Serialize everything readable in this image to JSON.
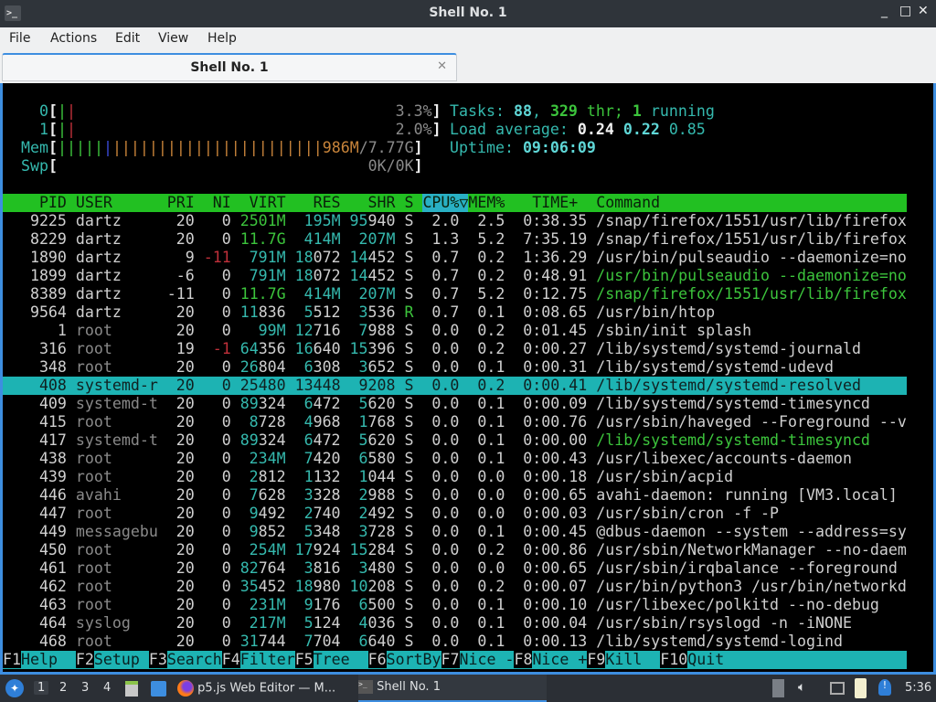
{
  "window": {
    "title": "Shell No. 1",
    "controls": [
      "_",
      "□",
      "✕"
    ]
  },
  "menu": [
    "File",
    "Actions",
    "Edit",
    "View",
    "Help"
  ],
  "tab": {
    "label": "Shell No. 1",
    "close": "✕"
  },
  "meters": {
    "cpu": [
      {
        "label": "0",
        "value": "3.3%",
        "percent": 3.3
      },
      {
        "label": "1",
        "value": "2.0%",
        "percent": 2.0
      }
    ],
    "mem": {
      "label": "Mem",
      "used": "986M",
      "total": "7.77G"
    },
    "swp": {
      "label": "Swp",
      "value": "0K/0K"
    }
  },
  "summary": {
    "tasks_label": "Tasks:",
    "tasks": "88",
    "sep": ",",
    "threads": "329",
    "thr_label": "thr;",
    "running": "1",
    "running_label": "running",
    "load_label": "Load average:",
    "load1": "0.24",
    "load5": "0.22",
    "load15": "0.85",
    "uptime_label": "Uptime:",
    "uptime": "09:06:09"
  },
  "header": {
    "pid": "PID",
    "user": "USER",
    "pri": "PRI",
    "ni": "NI",
    "virt": "VIRT",
    "res": "RES",
    "shr": "SHR",
    "s": "S",
    "cpu": "CPU%▽",
    "mem": "MEM%",
    "time": "TIME+",
    "cmd": "Command"
  },
  "colors": {
    "header_bg": "#22c022",
    "selection": "#1db3b3",
    "accent_teal": "#35b9ae"
  },
  "rows": [
    {
      "pid": "9225",
      "user": "dartz",
      "pri": "20",
      "ni": "0",
      "virt": "2501M",
      "res": "195M",
      "shr": "95940",
      "s": "S",
      "cpu": "2.0",
      "mem": "2.5",
      "time": "0:38.35",
      "cmd": "/snap/firefox/1551/usr/lib/firefox"
    },
    {
      "pid": "8229",
      "user": "dartz",
      "pri": "20",
      "ni": "0",
      "virt": "11.7G",
      "res": "414M",
      "shr": "207M",
      "s": "S",
      "cpu": "1.3",
      "mem": "5.2",
      "time": "7:35.19",
      "cmd": "/snap/firefox/1551/usr/lib/firefox"
    },
    {
      "pid": "1890",
      "user": "dartz",
      "pri": "9",
      "ni": "-11",
      "virt": "791M",
      "res": "18072",
      "shr": "14452",
      "s": "S",
      "cpu": "0.7",
      "mem": "0.2",
      "time": "1:36.29",
      "cmd": "/usr/bin/pulseaudio --daemonize=no"
    },
    {
      "pid": "1899",
      "user": "dartz",
      "pri": "-6",
      "ni": "0",
      "virt": "791M",
      "res": "18072",
      "shr": "14452",
      "s": "S",
      "cpu": "0.7",
      "mem": "0.2",
      "time": "0:48.91",
      "cmd": "/usr/bin/pulseaudio --daemonize=no",
      "thread": true
    },
    {
      "pid": "8389",
      "user": "dartz",
      "pri": "-11",
      "ni": "0",
      "virt": "11.7G",
      "res": "414M",
      "shr": "207M",
      "s": "S",
      "cpu": "0.7",
      "mem": "5.2",
      "time": "0:12.75",
      "cmd": "/snap/firefox/1551/usr/lib/firefox",
      "thread": true
    },
    {
      "pid": "9564",
      "user": "dartz",
      "pri": "20",
      "ni": "0",
      "virt": "11836",
      "res": "5512",
      "shr": "3536",
      "s": "R",
      "cpu": "0.7",
      "mem": "0.1",
      "time": "0:08.65",
      "cmd": "/usr/bin/htop"
    },
    {
      "pid": "1",
      "user": "root",
      "pri": "20",
      "ni": "0",
      "virt": "99M",
      "res": "12716",
      "shr": "7988",
      "s": "S",
      "cpu": "0.0",
      "mem": "0.2",
      "time": "0:01.45",
      "cmd": "/sbin/init splash"
    },
    {
      "pid": "316",
      "user": "root",
      "pri": "19",
      "ni": "-1",
      "virt": "64356",
      "res": "16640",
      "shr": "15396",
      "s": "S",
      "cpu": "0.0",
      "mem": "0.2",
      "time": "0:00.27",
      "cmd": "/lib/systemd/systemd-journald"
    },
    {
      "pid": "348",
      "user": "root",
      "pri": "20",
      "ni": "0",
      "virt": "26804",
      "res": "6308",
      "shr": "3652",
      "s": "S",
      "cpu": "0.0",
      "mem": "0.1",
      "time": "0:00.31",
      "cmd": "/lib/systemd/systemd-udevd"
    },
    {
      "pid": "408",
      "user": "systemd-r",
      "pri": "20",
      "ni": "0",
      "virt": "25480",
      "res": "13448",
      "shr": "9208",
      "s": "S",
      "cpu": "0.0",
      "mem": "0.2",
      "time": "0:00.41",
      "cmd": "/lib/systemd/systemd-resolved",
      "selected": true
    },
    {
      "pid": "409",
      "user": "systemd-t",
      "pri": "20",
      "ni": "0",
      "virt": "89324",
      "res": "6472",
      "shr": "5620",
      "s": "S",
      "cpu": "0.0",
      "mem": "0.1",
      "time": "0:00.09",
      "cmd": "/lib/systemd/systemd-timesyncd"
    },
    {
      "pid": "415",
      "user": "root",
      "pri": "20",
      "ni": "0",
      "virt": "8728",
      "res": "4968",
      "shr": "1768",
      "s": "S",
      "cpu": "0.0",
      "mem": "0.1",
      "time": "0:00.76",
      "cmd": "/usr/sbin/haveged --Foreground --v"
    },
    {
      "pid": "417",
      "user": "systemd-t",
      "pri": "20",
      "ni": "0",
      "virt": "89324",
      "res": "6472",
      "shr": "5620",
      "s": "S",
      "cpu": "0.0",
      "mem": "0.1",
      "time": "0:00.00",
      "cmd": "/lib/systemd/systemd-timesyncd",
      "thread": true
    },
    {
      "pid": "438",
      "user": "root",
      "pri": "20",
      "ni": "0",
      "virt": "234M",
      "res": "7420",
      "shr": "6580",
      "s": "S",
      "cpu": "0.0",
      "mem": "0.1",
      "time": "0:00.43",
      "cmd": "/usr/libexec/accounts-daemon"
    },
    {
      "pid": "439",
      "user": "root",
      "pri": "20",
      "ni": "0",
      "virt": "2812",
      "res": "1132",
      "shr": "1044",
      "s": "S",
      "cpu": "0.0",
      "mem": "0.0",
      "time": "0:00.18",
      "cmd": "/usr/sbin/acpid"
    },
    {
      "pid": "446",
      "user": "avahi",
      "pri": "20",
      "ni": "0",
      "virt": "7628",
      "res": "3328",
      "shr": "2988",
      "s": "S",
      "cpu": "0.0",
      "mem": "0.0",
      "time": "0:00.65",
      "cmd": "avahi-daemon: running [VM3.local]"
    },
    {
      "pid": "447",
      "user": "root",
      "pri": "20",
      "ni": "0",
      "virt": "9492",
      "res": "2740",
      "shr": "2492",
      "s": "S",
      "cpu": "0.0",
      "mem": "0.0",
      "time": "0:00.03",
      "cmd": "/usr/sbin/cron -f -P"
    },
    {
      "pid": "449",
      "user": "messagebu",
      "pri": "20",
      "ni": "0",
      "virt": "9852",
      "res": "5348",
      "shr": "3728",
      "s": "S",
      "cpu": "0.0",
      "mem": "0.1",
      "time": "0:00.45",
      "cmd": "@dbus-daemon --system --address=sy"
    },
    {
      "pid": "450",
      "user": "root",
      "pri": "20",
      "ni": "0",
      "virt": "254M",
      "res": "17924",
      "shr": "15284",
      "s": "S",
      "cpu": "0.0",
      "mem": "0.2",
      "time": "0:00.86",
      "cmd": "/usr/sbin/NetworkManager --no-daem"
    },
    {
      "pid": "461",
      "user": "root",
      "pri": "20",
      "ni": "0",
      "virt": "82764",
      "res": "3816",
      "shr": "3480",
      "s": "S",
      "cpu": "0.0",
      "mem": "0.0",
      "time": "0:00.65",
      "cmd": "/usr/sbin/irqbalance --foreground"
    },
    {
      "pid": "462",
      "user": "root",
      "pri": "20",
      "ni": "0",
      "virt": "35452",
      "res": "18980",
      "shr": "10208",
      "s": "S",
      "cpu": "0.0",
      "mem": "0.2",
      "time": "0:00.07",
      "cmd": "/usr/bin/python3 /usr/bin/networkd"
    },
    {
      "pid": "463",
      "user": "root",
      "pri": "20",
      "ni": "0",
      "virt": "231M",
      "res": "9176",
      "shr": "6500",
      "s": "S",
      "cpu": "0.0",
      "mem": "0.1",
      "time": "0:00.10",
      "cmd": "/usr/libexec/polkitd --no-debug"
    },
    {
      "pid": "464",
      "user": "syslog",
      "pri": "20",
      "ni": "0",
      "virt": "217M",
      "res": "5124",
      "shr": "4036",
      "s": "S",
      "cpu": "0.0",
      "mem": "0.1",
      "time": "0:00.04",
      "cmd": "/usr/sbin/rsyslogd -n -iNONE"
    },
    {
      "pid": "468",
      "user": "root",
      "pri": "20",
      "ni": "0",
      "virt": "31744",
      "res": "7704",
      "shr": "6640",
      "s": "S",
      "cpu": "0.0",
      "mem": "0.1",
      "time": "0:00.13",
      "cmd": "/lib/systemd/systemd-logind"
    }
  ],
  "footer": [
    {
      "key": "F1",
      "label": "Help"
    },
    {
      "key": "F2",
      "label": "Setup"
    },
    {
      "key": "F3",
      "label": "Search"
    },
    {
      "key": "F4",
      "label": "Filter"
    },
    {
      "key": "F5",
      "label": "Tree"
    },
    {
      "key": "F6",
      "label": "SortBy"
    },
    {
      "key": "F7",
      "label": "Nice -"
    },
    {
      "key": "F8",
      "label": "Nice +"
    },
    {
      "key": "F9",
      "label": "Kill"
    },
    {
      "key": "F10",
      "label": "Quit"
    }
  ],
  "taskbar": {
    "workspaces": [
      "1",
      "2",
      "3",
      "4"
    ],
    "active_workspace": "1",
    "tasks": [
      {
        "label": "p5.js Web Editor — M...",
        "icon": "firefox-icon"
      },
      {
        "label": "Shell No. 1",
        "icon": "terminal-icon",
        "active": true
      }
    ],
    "clock": "5:36"
  }
}
